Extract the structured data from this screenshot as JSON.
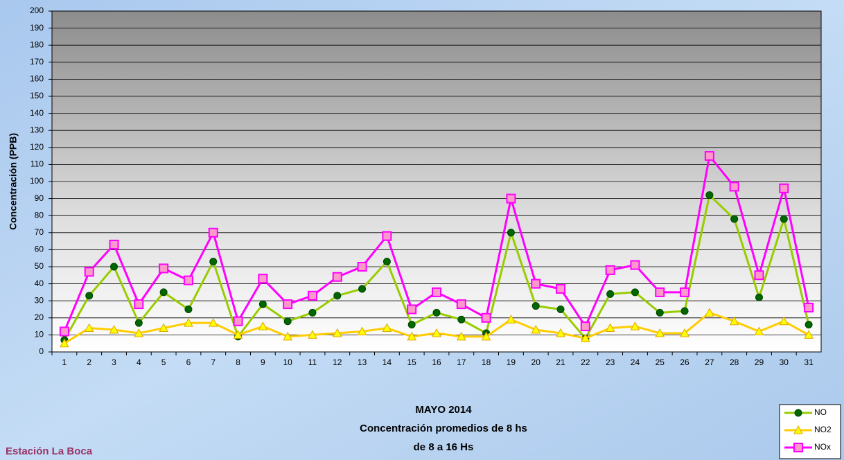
{
  "chart_data": {
    "type": "line",
    "title": [
      "MAYO 2014",
      "Concentración promedios de 8 hs",
      "de 8 a 16 Hs"
    ],
    "station": "Estación La Boca",
    "y_label": "Concentración (PPB)",
    "categories": [
      "1",
      "2",
      "3",
      "4",
      "5",
      "6",
      "7",
      "8",
      "9",
      "10",
      "11",
      "12",
      "13",
      "14",
      "15",
      "16",
      "17",
      "18",
      "19",
      "20",
      "21",
      "22",
      "23",
      "24",
      "25",
      "26",
      "27",
      "28",
      "29",
      "30",
      "31"
    ],
    "series": [
      {
        "name": "NO",
        "color": "#99cc00",
        "marker": "circle",
        "marker_color": "#006600",
        "values": [
          7,
          33,
          50,
          17,
          35,
          25,
          53,
          9,
          28,
          18,
          23,
          33,
          37,
          53,
          16,
          23,
          19,
          11,
          70,
          27,
          25,
          8,
          34,
          35,
          23,
          24,
          92,
          78,
          32,
          78,
          16
        ]
      },
      {
        "name": "NO2",
        "color": "#ffcc00",
        "marker": "triangle",
        "marker_color": "#ffff00",
        "values": [
          5,
          14,
          13,
          11,
          14,
          17,
          17,
          10,
          15,
          9,
          10,
          11,
          12,
          14,
          9,
          11,
          9,
          9,
          19,
          13,
          11,
          8,
          14,
          15,
          11,
          11,
          23,
          18,
          12,
          18,
          10
        ]
      },
      {
        "name": "NOx",
        "color": "#ff00ff",
        "marker": "square",
        "marker_color": "#ff99cc",
        "values": [
          12,
          47,
          63,
          28,
          49,
          42,
          70,
          18,
          43,
          28,
          33,
          44,
          50,
          68,
          25,
          35,
          28,
          20,
          90,
          40,
          37,
          15,
          48,
          51,
          35,
          35,
          115,
          97,
          45,
          96,
          26
        ]
      }
    ],
    "ylim": [
      0,
      200
    ],
    "yticks": [
      0,
      10,
      20,
      30,
      40,
      50,
      60,
      70,
      80,
      90,
      100,
      110,
      120,
      130,
      140,
      150,
      160,
      170,
      180,
      190,
      200
    ],
    "grid": true,
    "legend": "bottom-right"
  }
}
